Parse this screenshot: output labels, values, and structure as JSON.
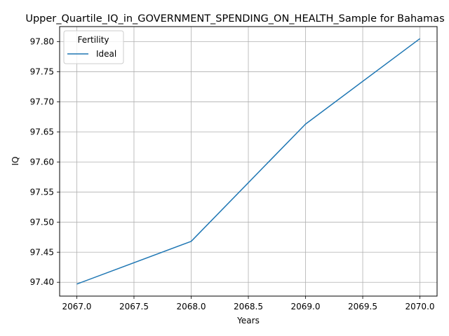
{
  "chart_data": {
    "type": "line",
    "title": "Upper_Quartile_IQ_in_GOVERNMENT_SPENDING_ON_HEALTH_Sample for Bahamas",
    "xlabel": "Years",
    "ylabel": "IQ",
    "x": [
      2067,
      2068,
      2069,
      2070
    ],
    "series": [
      {
        "name": "Ideal",
        "values": [
          97.397,
          97.468,
          97.663,
          97.805
        ],
        "color": "#1f77b4"
      }
    ],
    "xlim": [
      2066.85,
      2070.15
    ],
    "ylim": [
      97.377,
      97.825
    ],
    "x_ticks": [
      2067.0,
      2067.5,
      2068.0,
      2068.5,
      2069.0,
      2069.5,
      2070.0
    ],
    "x_tick_labels": [
      "2067.0",
      "2067.5",
      "2068.0",
      "2068.5",
      "2069.0",
      "2069.5",
      "2070.0"
    ],
    "y_ticks": [
      97.4,
      97.45,
      97.5,
      97.55,
      97.6,
      97.65,
      97.7,
      97.75,
      97.8
    ],
    "y_tick_labels": [
      "97.40",
      "97.45",
      "97.50",
      "97.55",
      "97.60",
      "97.65",
      "97.70",
      "97.75",
      "97.80"
    ],
    "grid": true,
    "legend": {
      "title": "Fertility",
      "placement": "top-left"
    }
  }
}
